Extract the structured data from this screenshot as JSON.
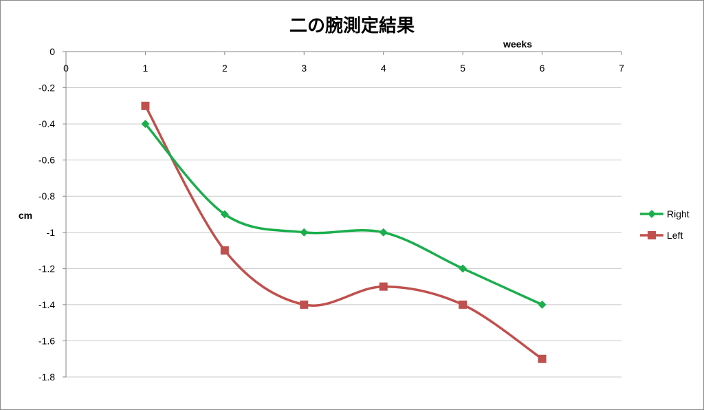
{
  "chart_data": {
    "type": "line",
    "title": "二の腕測定結果",
    "xlabel": "weeks",
    "ylabel": "cm",
    "xlim": [
      0,
      7
    ],
    "ylim": [
      -1.8,
      0
    ],
    "x_ticks": [
      "0",
      "1",
      "2",
      "3",
      "4",
      "5",
      "6",
      "7"
    ],
    "y_ticks": [
      "0",
      "-0.2",
      "-0.4",
      "-0.6",
      "-0.8",
      "-1",
      "-1.2",
      "-1.4",
      "-1.6",
      "-1.8"
    ],
    "grid": true,
    "smooth": true,
    "legend_position": "right",
    "series": [
      {
        "name": "Right",
        "color": "#1aae4c",
        "marker": "diamond",
        "x": [
          1,
          2,
          3,
          4,
          5,
          6
        ],
        "y": [
          -0.4,
          -0.9,
          -1.0,
          -1.0,
          -1.2,
          -1.4
        ]
      },
      {
        "name": "Left",
        "color": "#c0504d",
        "marker": "square",
        "x": [
          1,
          2,
          3,
          4,
          5,
          6
        ],
        "y": [
          -0.3,
          -1.1,
          -1.4,
          -1.3,
          -1.4,
          -1.7
        ]
      }
    ]
  }
}
